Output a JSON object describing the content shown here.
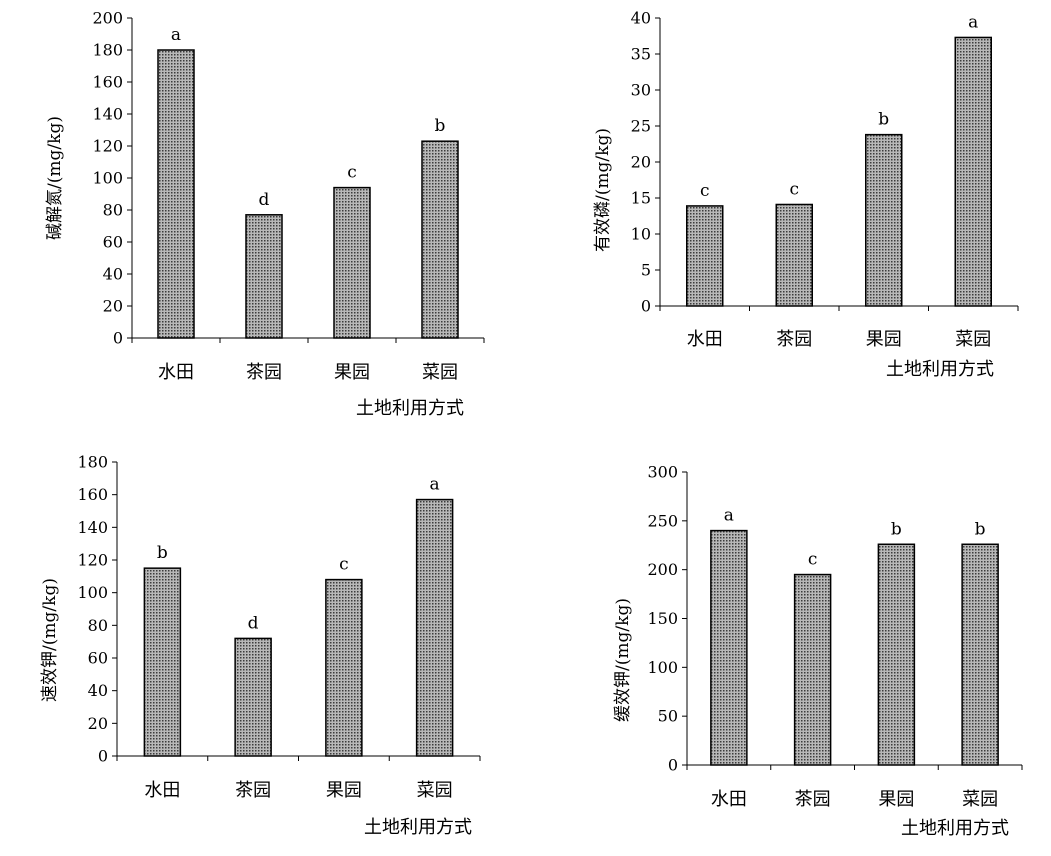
{
  "colors": {
    "axis": "#000000",
    "bar_fill": "#b8b8b8",
    "bar_dot": "#3c3c3c",
    "bar_edge": "#000000"
  },
  "chart_data": [
    {
      "type": "bar",
      "categories": [
        "水田",
        "茶园",
        "果园",
        "菜园"
      ],
      "values": [
        180,
        77,
        94,
        123
      ],
      "letters": [
        "a",
        "d",
        "c",
        "b"
      ],
      "xlabel": "土地利用方式",
      "ylabel": "碱解氮/(mg/kg)",
      "ylim": [
        0,
        200
      ],
      "yticks": [
        0,
        20,
        40,
        60,
        80,
        100,
        120,
        140,
        160,
        180,
        200
      ],
      "grid": false,
      "legend": "none"
    },
    {
      "type": "bar",
      "categories": [
        "水田",
        "茶园",
        "果园",
        "菜园"
      ],
      "values": [
        13.9,
        14.1,
        23.8,
        37.3
      ],
      "letters": [
        "c",
        "c",
        "b",
        "a"
      ],
      "xlabel": "土地利用方式",
      "ylabel": "有效磷/(mg/kg)",
      "ylim": [
        0,
        40
      ],
      "yticks": [
        0,
        5,
        10,
        15,
        20,
        25,
        30,
        35,
        40
      ],
      "grid": false,
      "legend": "none"
    },
    {
      "type": "bar",
      "categories": [
        "水田",
        "茶园",
        "果园",
        "菜园"
      ],
      "values": [
        115,
        72,
        108,
        157
      ],
      "letters": [
        "b",
        "d",
        "c",
        "a"
      ],
      "xlabel": "土地利用方式",
      "ylabel": "速效钾/(mg/kg)",
      "ylim": [
        0,
        180
      ],
      "yticks": [
        0,
        20,
        40,
        60,
        80,
        100,
        120,
        140,
        160,
        180
      ],
      "grid": false,
      "legend": "none"
    },
    {
      "type": "bar",
      "categories": [
        "水田",
        "茶园",
        "果园",
        "菜园"
      ],
      "values": [
        240,
        195,
        226,
        226
      ],
      "letters": [
        "a",
        "c",
        "b",
        "b"
      ],
      "xlabel": "土地利用方式",
      "ylabel": "缓效钾/(mg/kg)",
      "ylim": [
        0,
        300
      ],
      "yticks": [
        0,
        50,
        100,
        150,
        200,
        250,
        300
      ],
      "grid": false,
      "legend": "none"
    }
  ]
}
